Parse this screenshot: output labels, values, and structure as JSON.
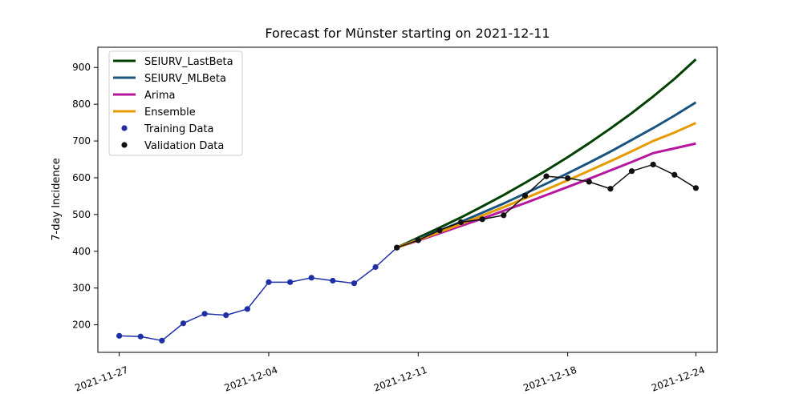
{
  "chart_data": {
    "type": "line",
    "title": "Forecast for Münster starting on 2021-12-11",
    "xlabel": "",
    "ylabel": "7-day Incidence",
    "x_ticks": [
      "2021-11-27",
      "2021-12-04",
      "2021-12-11",
      "2021-12-18",
      "2021-12-24"
    ],
    "xlim": [
      "2021-11-26",
      "2021-12-25"
    ],
    "y_ticks": [
      200,
      300,
      400,
      500,
      600,
      700,
      800,
      900
    ],
    "ylim": [
      125,
      955
    ],
    "grid": false,
    "legend_position": "top-left",
    "series": [
      {
        "name": "SEIURV_LastBeta",
        "kind": "line",
        "color": "#004000",
        "points": [
          [
            "2021-12-10",
            410
          ],
          [
            "2021-12-11",
            437
          ],
          [
            "2021-12-12",
            464
          ],
          [
            "2021-12-13",
            492
          ],
          [
            "2021-12-14",
            522
          ],
          [
            "2021-12-15",
            553
          ],
          [
            "2021-12-16",
            586
          ],
          [
            "2021-12-17",
            620
          ],
          [
            "2021-12-18",
            656
          ],
          [
            "2021-12-19",
            694
          ],
          [
            "2021-12-20",
            734
          ],
          [
            "2021-12-21",
            776
          ],
          [
            "2021-12-22",
            821
          ],
          [
            "2021-12-23",
            869
          ],
          [
            "2021-12-24",
            922
          ]
        ]
      },
      {
        "name": "SEIURV_MLBeta",
        "kind": "line",
        "color": "#1a5480",
        "points": [
          [
            "2021-12-10",
            410
          ],
          [
            "2021-12-11",
            433
          ],
          [
            "2021-12-12",
            456
          ],
          [
            "2021-12-13",
            480
          ],
          [
            "2021-12-14",
            505
          ],
          [
            "2021-12-15",
            530
          ],
          [
            "2021-12-16",
            557
          ],
          [
            "2021-12-17",
            584
          ],
          [
            "2021-12-18",
            612
          ],
          [
            "2021-12-19",
            641
          ],
          [
            "2021-12-20",
            671
          ],
          [
            "2021-12-21",
            703
          ],
          [
            "2021-12-22",
            735
          ],
          [
            "2021-12-23",
            769
          ],
          [
            "2021-12-24",
            805
          ]
        ]
      },
      {
        "name": "Arima",
        "kind": "line",
        "color": "#b5179e",
        "points": [
          [
            "2021-12-10",
            410
          ],
          [
            "2021-12-11",
            429
          ],
          [
            "2021-12-12",
            449
          ],
          [
            "2021-12-13",
            469
          ],
          [
            "2021-12-14",
            489
          ],
          [
            "2021-12-15",
            510
          ],
          [
            "2021-12-16",
            531
          ],
          [
            "2021-12-17",
            553
          ],
          [
            "2021-12-18",
            575
          ],
          [
            "2021-12-19",
            597
          ],
          [
            "2021-12-20",
            620
          ],
          [
            "2021-12-21",
            643
          ],
          [
            "2021-12-22",
            667
          ],
          [
            "2021-12-23",
            680
          ],
          [
            "2021-12-24",
            693
          ]
        ]
      },
      {
        "name": "Ensemble",
        "kind": "line",
        "color": "#e69a00",
        "points": [
          [
            "2021-12-10",
            410
          ],
          [
            "2021-12-11",
            431
          ],
          [
            "2021-12-12",
            452
          ],
          [
            "2021-12-13",
            474
          ],
          [
            "2021-12-14",
            497
          ],
          [
            "2021-12-15",
            520
          ],
          [
            "2021-12-16",
            544
          ],
          [
            "2021-12-17",
            568
          ],
          [
            "2021-12-18",
            593
          ],
          [
            "2021-12-19",
            619
          ],
          [
            "2021-12-20",
            645
          ],
          [
            "2021-12-21",
            672
          ],
          [
            "2021-12-22",
            700
          ],
          [
            "2021-12-23",
            723
          ],
          [
            "2021-12-24",
            749
          ]
        ]
      },
      {
        "name": "Training Data",
        "kind": "line+markers",
        "color": "#1f2fa8",
        "points": [
          [
            "2021-11-27",
            170
          ],
          [
            "2021-11-28",
            168
          ],
          [
            "2021-11-29",
            157
          ],
          [
            "2021-11-30",
            204
          ],
          [
            "2021-12-01",
            230
          ],
          [
            "2021-12-02",
            226
          ],
          [
            "2021-12-03",
            243
          ],
          [
            "2021-12-04",
            316
          ],
          [
            "2021-12-05",
            316
          ],
          [
            "2021-12-06",
            328
          ],
          [
            "2021-12-07",
            320
          ],
          [
            "2021-12-08",
            313
          ],
          [
            "2021-12-09",
            357
          ],
          [
            "2021-12-10",
            410
          ]
        ]
      },
      {
        "name": "Validation Data",
        "kind": "line+markers",
        "color": "#111111",
        "points": [
          [
            "2021-12-10",
            410
          ],
          [
            "2021-12-11",
            430
          ],
          [
            "2021-12-12",
            457
          ],
          [
            "2021-12-13",
            479
          ],
          [
            "2021-12-14",
            487
          ],
          [
            "2021-12-15",
            498
          ],
          [
            "2021-12-16",
            551
          ],
          [
            "2021-12-17",
            604
          ],
          [
            "2021-12-18",
            599
          ],
          [
            "2021-12-19",
            589
          ],
          [
            "2021-12-20",
            570
          ],
          [
            "2021-12-21",
            618
          ],
          [
            "2021-12-22",
            636
          ],
          [
            "2021-12-23",
            608
          ],
          [
            "2021-12-24",
            572
          ]
        ]
      }
    ]
  }
}
